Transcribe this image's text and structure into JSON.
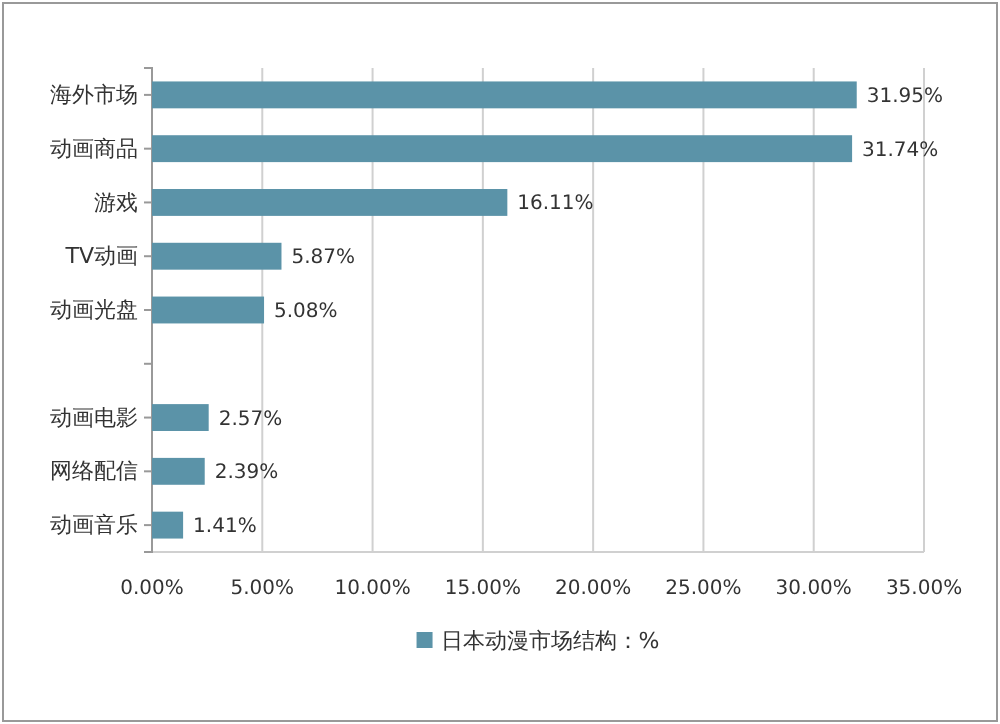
{
  "chart_data": {
    "type": "bar",
    "orientation": "horizontal",
    "categories": [
      "海外市场",
      "动画商品",
      "游戏",
      "TV动画",
      "动画光盘",
      null,
      "动画电影",
      "网络配信",
      "动画音乐"
    ],
    "series": [
      {
        "name": "日本动漫市场结构：%",
        "color": "#5b93a8",
        "values": [
          31.95,
          31.74,
          16.11,
          5.87,
          5.08,
          null,
          2.57,
          2.39,
          1.41
        ],
        "value_labels": [
          "31.95%",
          "31.74%",
          "16.11%",
          "5.87%",
          "5.08%",
          null,
          "2.57%",
          "2.39%",
          "1.41%"
        ]
      }
    ],
    "xlim": [
      0,
      35
    ],
    "xticks": [
      {
        "value": 0,
        "label": "0.00%"
      },
      {
        "value": 5,
        "label": "5.00%"
      },
      {
        "value": 10,
        "label": "10.00%"
      },
      {
        "value": 15,
        "label": "15.00%"
      },
      {
        "value": 20,
        "label": "20.00%"
      },
      {
        "value": 25,
        "label": "25.00%"
      },
      {
        "value": 30,
        "label": "30.00%"
      },
      {
        "value": 35,
        "label": "35.00%"
      }
    ],
    "grid": "x",
    "legend": "bottom"
  }
}
